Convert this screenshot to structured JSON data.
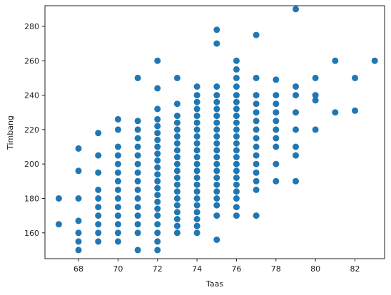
{
  "chart_data": {
    "type": "scatter",
    "xlabel": "Taas",
    "ylabel": "Timbang",
    "xlim": [
      66.3,
      83.5
    ],
    "ylim": [
      145,
      292
    ],
    "x_ticks": [
      68,
      70,
      72,
      74,
      76,
      78,
      80,
      82
    ],
    "y_ticks": [
      160,
      180,
      200,
      220,
      240,
      260,
      280
    ],
    "grid": false,
    "marker_color": "#1f77b4",
    "points": [
      [
        67,
        180
      ],
      [
        67,
        165
      ],
      [
        68,
        209
      ],
      [
        68,
        196
      ],
      [
        68,
        180
      ],
      [
        68,
        167
      ],
      [
        68,
        160
      ],
      [
        68,
        155
      ],
      [
        68,
        150
      ],
      [
        69,
        218
      ],
      [
        69,
        205
      ],
      [
        69,
        195
      ],
      [
        69,
        185
      ],
      [
        69,
        180
      ],
      [
        69,
        175
      ],
      [
        69,
        170
      ],
      [
        69,
        165
      ],
      [
        69,
        160
      ],
      [
        69,
        155
      ],
      [
        70,
        226
      ],
      [
        70,
        220
      ],
      [
        70,
        210
      ],
      [
        70,
        205
      ],
      [
        70,
        200
      ],
      [
        70,
        195
      ],
      [
        70,
        190
      ],
      [
        70,
        185
      ],
      [
        70,
        180
      ],
      [
        70,
        175
      ],
      [
        70,
        170
      ],
      [
        70,
        165
      ],
      [
        70,
        160
      ],
      [
        70,
        155
      ],
      [
        71,
        250
      ],
      [
        71,
        225
      ],
      [
        71,
        220
      ],
      [
        71,
        215
      ],
      [
        71,
        210
      ],
      [
        71,
        205
      ],
      [
        71,
        200
      ],
      [
        71,
        195
      ],
      [
        71,
        190
      ],
      [
        71,
        185
      ],
      [
        71,
        180
      ],
      [
        71,
        175
      ],
      [
        71,
        170
      ],
      [
        71,
        165
      ],
      [
        71,
        160
      ],
      [
        71,
        150
      ],
      [
        72,
        260
      ],
      [
        72,
        244
      ],
      [
        72,
        232
      ],
      [
        72,
        226
      ],
      [
        72,
        222
      ],
      [
        72,
        218
      ],
      [
        72,
        214
      ],
      [
        72,
        210
      ],
      [
        72,
        206
      ],
      [
        72,
        202
      ],
      [
        72,
        198
      ],
      [
        72,
        194
      ],
      [
        72,
        190
      ],
      [
        72,
        186
      ],
      [
        72,
        182
      ],
      [
        72,
        178
      ],
      [
        72,
        174
      ],
      [
        72,
        170
      ],
      [
        72,
        165
      ],
      [
        72,
        160
      ],
      [
        72,
        155
      ],
      [
        72,
        150
      ],
      [
        73,
        250
      ],
      [
        73,
        235
      ],
      [
        73,
        228
      ],
      [
        73,
        224
      ],
      [
        73,
        220
      ],
      [
        73,
        216
      ],
      [
        73,
        212
      ],
      [
        73,
        208
      ],
      [
        73,
        204
      ],
      [
        73,
        200
      ],
      [
        73,
        196
      ],
      [
        73,
        192
      ],
      [
        73,
        188
      ],
      [
        73,
        184
      ],
      [
        73,
        180
      ],
      [
        73,
        176
      ],
      [
        73,
        172
      ],
      [
        73,
        168
      ],
      [
        73,
        164
      ],
      [
        73,
        160
      ],
      [
        74,
        245
      ],
      [
        74,
        240
      ],
      [
        74,
        236
      ],
      [
        74,
        232
      ],
      [
        74,
        228
      ],
      [
        74,
        224
      ],
      [
        74,
        220
      ],
      [
        74,
        216
      ],
      [
        74,
        212
      ],
      [
        74,
        208
      ],
      [
        74,
        204
      ],
      [
        74,
        200
      ],
      [
        74,
        196
      ],
      [
        74,
        192
      ],
      [
        74,
        188
      ],
      [
        74,
        184
      ],
      [
        74,
        180
      ],
      [
        74,
        176
      ],
      [
        74,
        172
      ],
      [
        74,
        168
      ],
      [
        74,
        164
      ],
      [
        74,
        160
      ],
      [
        75,
        278
      ],
      [
        75,
        270
      ],
      [
        75,
        245
      ],
      [
        75,
        240
      ],
      [
        75,
        236
      ],
      [
        75,
        232
      ],
      [
        75,
        228
      ],
      [
        75,
        224
      ],
      [
        75,
        220
      ],
      [
        75,
        216
      ],
      [
        75,
        212
      ],
      [
        75,
        208
      ],
      [
        75,
        204
      ],
      [
        75,
        200
      ],
      [
        75,
        196
      ],
      [
        75,
        192
      ],
      [
        75,
        188
      ],
      [
        75,
        184
      ],
      [
        75,
        180
      ],
      [
        75,
        176
      ],
      [
        75,
        170
      ],
      [
        75,
        156
      ],
      [
        76,
        260
      ],
      [
        76,
        255
      ],
      [
        76,
        250
      ],
      [
        76,
        245
      ],
      [
        76,
        240
      ],
      [
        76,
        236
      ],
      [
        76,
        232
      ],
      [
        76,
        228
      ],
      [
        76,
        224
      ],
      [
        76,
        220
      ],
      [
        76,
        216
      ],
      [
        76,
        212
      ],
      [
        76,
        208
      ],
      [
        76,
        204
      ],
      [
        76,
        200
      ],
      [
        76,
        196
      ],
      [
        76,
        192
      ],
      [
        76,
        188
      ],
      [
        76,
        184
      ],
      [
        76,
        180
      ],
      [
        76,
        175
      ],
      [
        76,
        170
      ],
      [
        77,
        275
      ],
      [
        77,
        250
      ],
      [
        77,
        240
      ],
      [
        77,
        235
      ],
      [
        77,
        230
      ],
      [
        77,
        225
      ],
      [
        77,
        220
      ],
      [
        77,
        215
      ],
      [
        77,
        210
      ],
      [
        77,
        205
      ],
      [
        77,
        200
      ],
      [
        77,
        195
      ],
      [
        77,
        190
      ],
      [
        77,
        185
      ],
      [
        77,
        170
      ],
      [
        78,
        249
      ],
      [
        78,
        240
      ],
      [
        78,
        235
      ],
      [
        78,
        230
      ],
      [
        78,
        225
      ],
      [
        78,
        220
      ],
      [
        78,
        215
      ],
      [
        78,
        210
      ],
      [
        78,
        200
      ],
      [
        78,
        190
      ],
      [
        79,
        290
      ],
      [
        79,
        245
      ],
      [
        79,
        240
      ],
      [
        79,
        230
      ],
      [
        79,
        220
      ],
      [
        79,
        210
      ],
      [
        79,
        205
      ],
      [
        79,
        190
      ],
      [
        80,
        250
      ],
      [
        80,
        240
      ],
      [
        80,
        237
      ],
      [
        80,
        220
      ],
      [
        81,
        260
      ],
      [
        81,
        230
      ],
      [
        82,
        250
      ],
      [
        82,
        231
      ],
      [
        83,
        260
      ]
    ]
  }
}
